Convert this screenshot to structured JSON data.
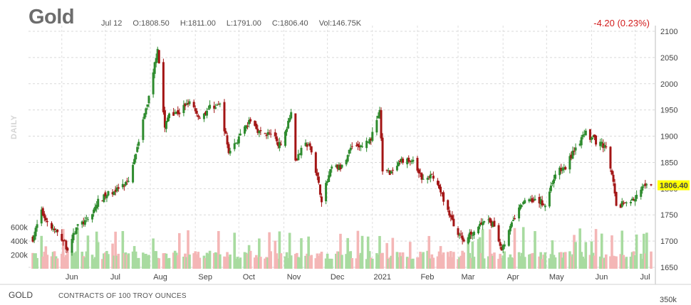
{
  "header": {
    "title": "Gold",
    "date": "Jul 12",
    "open": "O:1808.50",
    "high": "H:1811.00",
    "low": "L:1791.00",
    "close": "C:1806.40",
    "volume": "Vol:146.75K",
    "change": "-4.20 (0.23%)",
    "change_color": "#d21a1a"
  },
  "side_label": "DAILY",
  "footer": {
    "symbol": "GOLD",
    "units": "CONTRACTS OF 100 TROY OUNCES",
    "volume_scale": "350k"
  },
  "chart_data": {
    "type": "candlestick",
    "up_color": "#2e8b2e",
    "down_color": "#a31515",
    "volume_up_color": "#a8dba0",
    "volume_down_color": "#f4b6b6",
    "price_ylim": [
      1650,
      2100
    ],
    "price_ticks": [
      "2100",
      "2050",
      "2000",
      "1950",
      "1900",
      "1850",
      "1800",
      "1750",
      "1700",
      "1650"
    ],
    "volume_ticks": [
      "600k",
      "400k",
      "200k"
    ],
    "volume_ylim": [
      0,
      800000
    ],
    "x_labels": [
      "Jun",
      "Jul",
      "Aug",
      "Sep",
      "Oct",
      "Nov",
      "Dec",
      "2021",
      "Feb",
      "Mar",
      "Apr",
      "May",
      "Jun",
      "Jul"
    ],
    "last_price_label": "1806.40",
    "last_price_bg": "#ffff00",
    "close_path": [
      [
        "2020-05-12",
        1705
      ],
      [
        "2020-05-18",
        1755
      ],
      [
        "2020-05-25",
        1725
      ],
      [
        "2020-06-01",
        1705
      ],
      [
        "2020-06-05",
        1685
      ],
      [
        "2020-06-12",
        1730
      ],
      [
        "2020-06-19",
        1740
      ],
      [
        "2020-06-26",
        1775
      ],
      [
        "2020-07-03",
        1790
      ],
      [
        "2020-07-10",
        1800
      ],
      [
        "2020-07-17",
        1810
      ],
      [
        "2020-07-24",
        1895
      ],
      [
        "2020-07-31",
        1975
      ],
      [
        "2020-08-06",
        2070
      ],
      [
        "2020-08-11",
        1915
      ],
      [
        "2020-08-14",
        1945
      ],
      [
        "2020-08-21",
        1945
      ],
      [
        "2020-08-28",
        1970
      ],
      [
        "2020-09-04",
        1935
      ],
      [
        "2020-09-11",
        1955
      ],
      [
        "2020-09-18",
        1960
      ],
      [
        "2020-09-24",
        1870
      ],
      [
        "2020-10-02",
        1900
      ],
      [
        "2020-10-09",
        1930
      ],
      [
        "2020-10-16",
        1905
      ],
      [
        "2020-10-23",
        1905
      ],
      [
        "2020-10-30",
        1880
      ],
      [
        "2020-11-06",
        1950
      ],
      [
        "2020-11-09",
        1855
      ],
      [
        "2020-11-16",
        1885
      ],
      [
        "2020-11-20",
        1875
      ],
      [
        "2020-11-27",
        1780
      ],
      [
        "2020-12-04",
        1840
      ],
      [
        "2020-12-11",
        1840
      ],
      [
        "2020-12-18",
        1885
      ],
      [
        "2020-12-24",
        1880
      ],
      [
        "2020-12-31",
        1895
      ],
      [
        "2021-01-06",
        1950
      ],
      [
        "2021-01-08",
        1835
      ],
      [
        "2021-01-15",
        1830
      ],
      [
        "2021-01-22",
        1855
      ],
      [
        "2021-01-29",
        1850
      ],
      [
        "2021-02-05",
        1815
      ],
      [
        "2021-02-12",
        1825
      ],
      [
        "2021-02-19",
        1780
      ],
      [
        "2021-02-26",
        1730
      ],
      [
        "2021-03-05",
        1700
      ],
      [
        "2021-03-12",
        1720
      ],
      [
        "2021-03-19",
        1740
      ],
      [
        "2021-03-26",
        1730
      ],
      [
        "2021-03-31",
        1685
      ],
      [
        "2021-04-09",
        1745
      ],
      [
        "2021-04-16",
        1780
      ],
      [
        "2021-04-23",
        1780
      ],
      [
        "2021-04-30",
        1770
      ],
      [
        "2021-05-07",
        1830
      ],
      [
        "2021-05-14",
        1840
      ],
      [
        "2021-05-21",
        1880
      ],
      [
        "2021-05-28",
        1905
      ],
      [
        "2021-06-04",
        1890
      ],
      [
        "2021-06-11",
        1880
      ],
      [
        "2021-06-16",
        1810
      ],
      [
        "2021-06-18",
        1765
      ],
      [
        "2021-06-25",
        1775
      ],
      [
        "2021-07-01",
        1780
      ],
      [
        "2021-07-07",
        1805
      ],
      [
        "2021-07-12",
        1806.4
      ]
    ]
  }
}
